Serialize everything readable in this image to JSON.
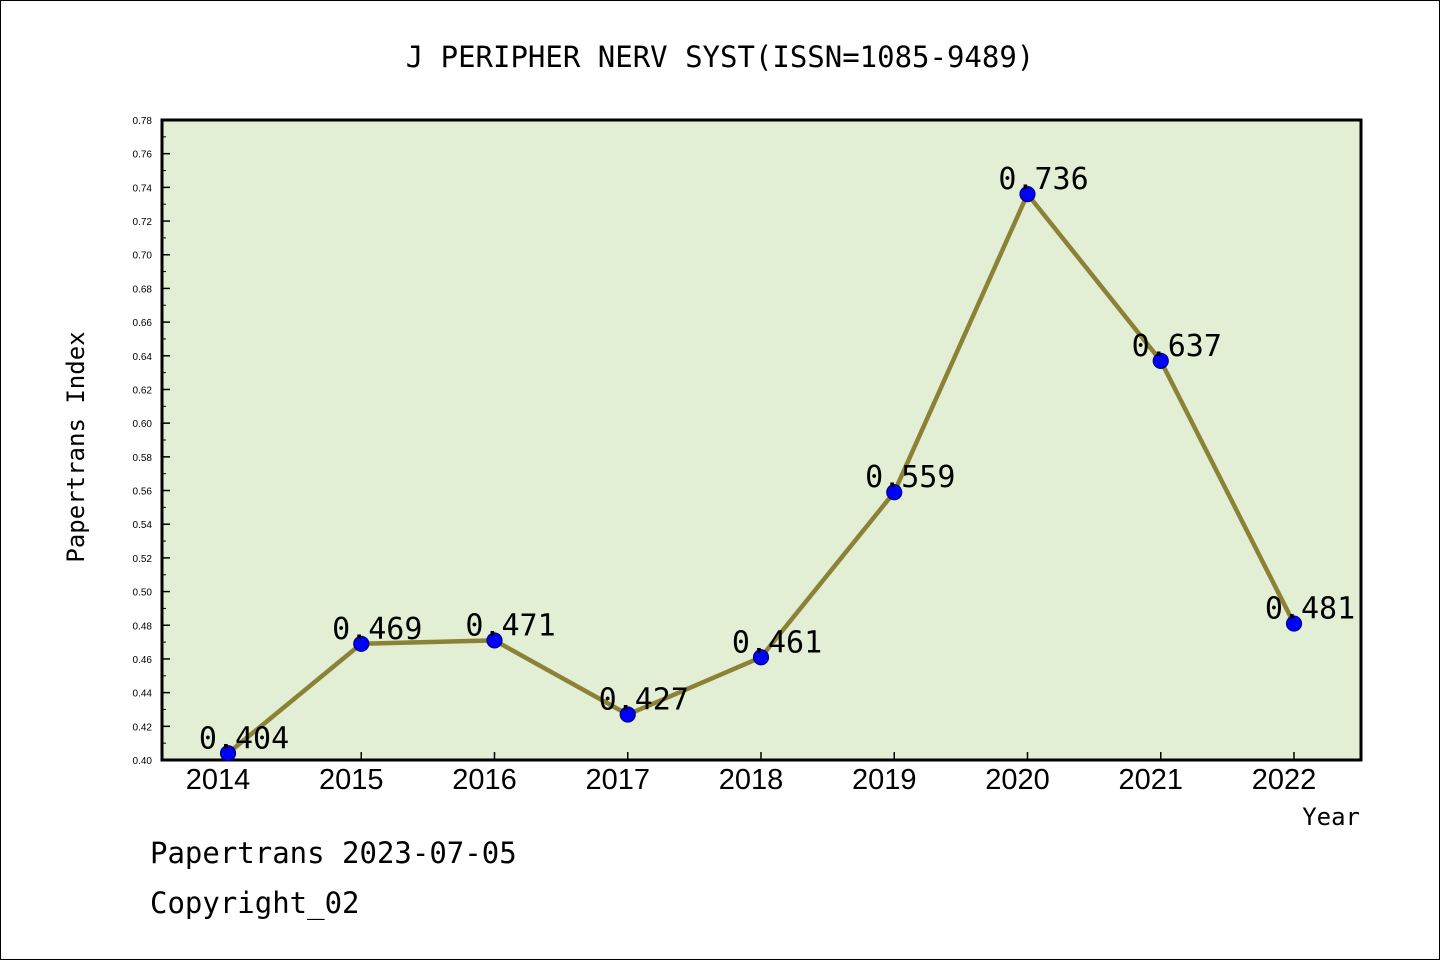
{
  "chart_data": {
    "type": "line",
    "title": "J PERIPHER NERV SYST(ISSN=1085-9489)",
    "xlabel": "Year",
    "ylabel": "Papertrans Index",
    "categories": [
      "2014",
      "2015",
      "2016",
      "2017",
      "2018",
      "2019",
      "2020",
      "2021",
      "2022"
    ],
    "series": [
      {
        "values": [
          0.404,
          0.469,
          0.471,
          0.427,
          0.461,
          0.559,
          0.736,
          0.637,
          0.481
        ]
      }
    ],
    "data_labels": [
      "0.404",
      "0.469",
      "0.471",
      "0.427",
      "0.461",
      "0.559",
      "0.736",
      "0.637",
      "0.481"
    ],
    "ylim": [
      0.4,
      0.78
    ],
    "yticks": [
      "0.40",
      "0.42",
      "0.44",
      "0.46",
      "0.48",
      "0.50",
      "0.52",
      "0.54",
      "0.56",
      "0.58",
      "0.60",
      "0.62",
      "0.64",
      "0.66",
      "0.68",
      "0.70",
      "0.72",
      "0.74",
      "0.76",
      "0.78"
    ],
    "grid": false,
    "colors": {
      "plot_background": "#e2efd4",
      "line": "#8b8236",
      "marker": "#0000ff"
    }
  },
  "footer": {
    "line1": "Papertrans 2023-07-05",
    "line2": "Copyright_02"
  }
}
